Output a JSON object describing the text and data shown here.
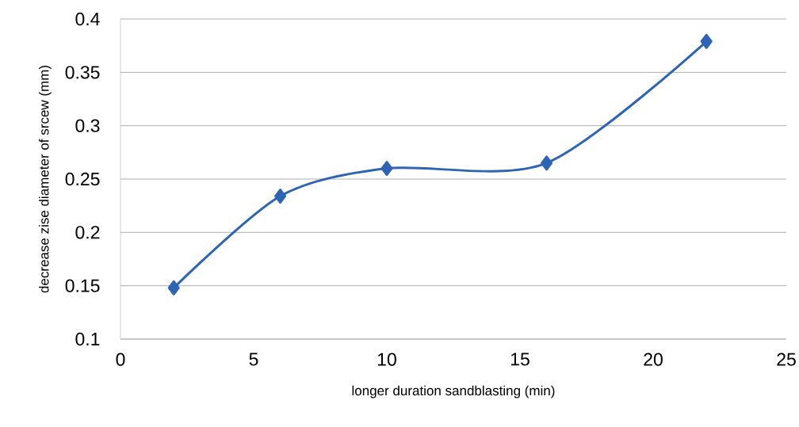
{
  "chart_data": {
    "type": "line",
    "xlabel": "longer duration sandblasting (min)",
    "ylabel": "decrease zise diameter of srcew (mm)",
    "x": [
      2,
      6,
      10,
      16,
      22
    ],
    "series": [
      {
        "color": "#2e64b4",
        "values": [
          0.148,
          0.234,
          0.26,
          0.265,
          0.379
        ]
      }
    ],
    "xlim": [
      0,
      25
    ],
    "xticks": [
      0,
      5,
      10,
      15,
      20,
      25
    ],
    "ylim": [
      0.1,
      0.4
    ],
    "yticks": [
      0.1,
      0.15,
      0.2,
      0.25,
      0.3,
      0.35,
      0.4
    ],
    "grid": "y",
    "marker": "diamond",
    "line_style": "solid"
  }
}
